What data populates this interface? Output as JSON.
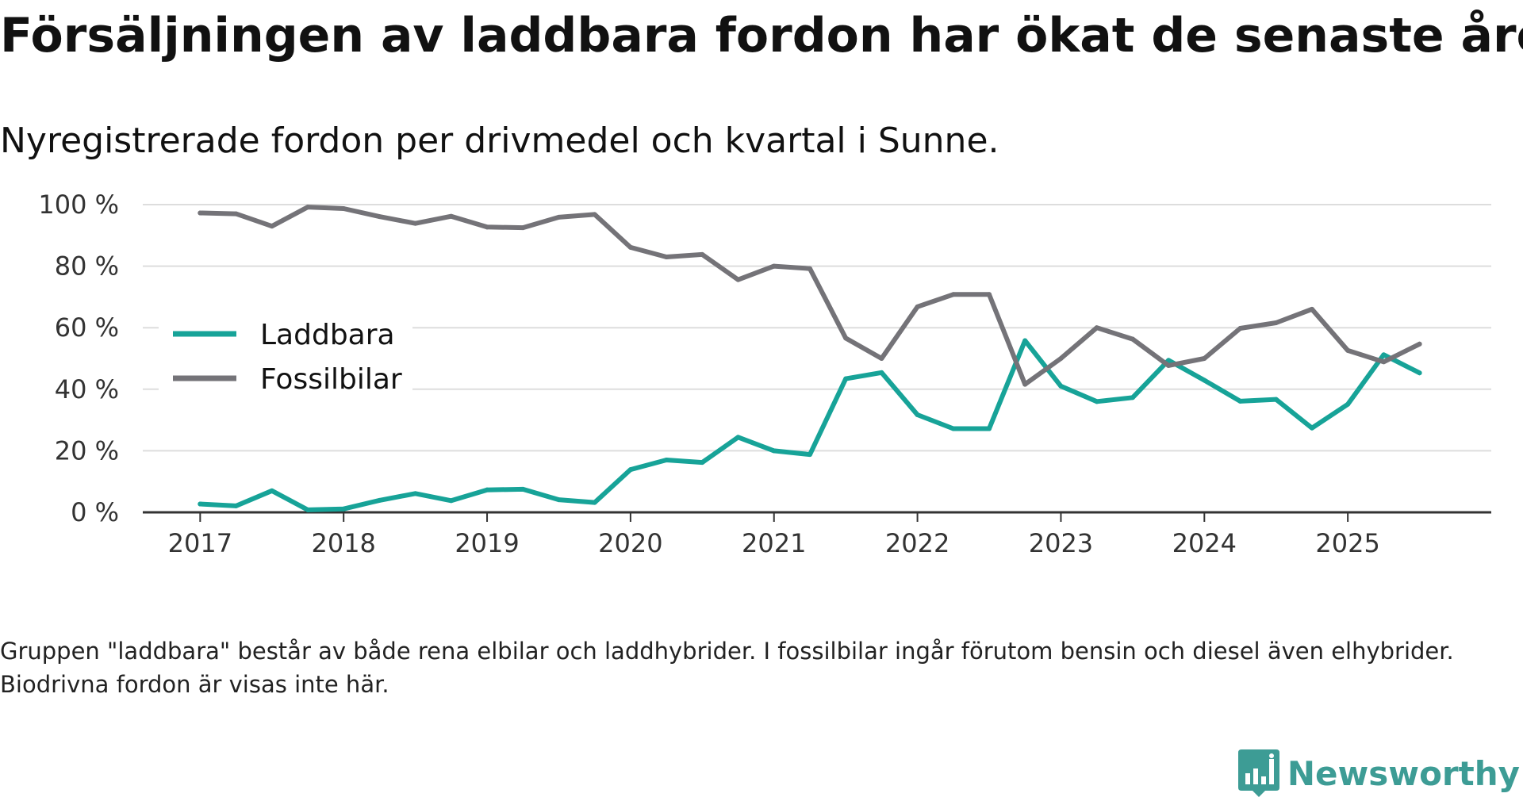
{
  "title": "Försäljningen av laddbara fordon har ökat de senaste åren",
  "subtitle": "Nyregistrerade fordon per drivmedel och kvartal i Sunne.",
  "footnote": "Gruppen \"laddbara\" består av både rena elbilar och laddhybrider. I fossilbilar ingår förutom bensin och diesel även elhybrider. Biodrivna fordon är visas inte här.",
  "brand": {
    "name": "Newsworthy",
    "color": "#3d9c95",
    "icon": "newsworthy-logo-icon"
  },
  "chart_data": {
    "type": "line",
    "title": "Försäljningen av laddbara fordon har ökat de senaste åren",
    "xlabel": "",
    "ylabel": "",
    "x_ticks": [
      "2017",
      "2018",
      "2019",
      "2020",
      "2021",
      "2022",
      "2023",
      "2024",
      "2025"
    ],
    "y_ticks": [
      "0 %",
      "20 %",
      "40 %",
      "60 %",
      "80 %",
      "100 %"
    ],
    "y_tick_values": [
      0,
      20,
      40,
      60,
      80,
      100
    ],
    "ylim": [
      0,
      100
    ],
    "xlim": [
      2016.6,
      2026.0
    ],
    "grid": true,
    "legend_position": "middle-left",
    "x": [
      2017.0,
      2017.25,
      2017.5,
      2017.75,
      2018.0,
      2018.25,
      2018.5,
      2018.75,
      2019.0,
      2019.25,
      2019.5,
      2019.75,
      2020.0,
      2020.25,
      2020.5,
      2020.75,
      2021.0,
      2021.25,
      2021.5,
      2021.75,
      2022.0,
      2022.25,
      2022.5,
      2022.75,
      2023.0,
      2023.25,
      2023.5,
      2023.75,
      2024.0,
      2024.25,
      2024.5,
      2024.75,
      2025.0,
      2025.25,
      2025.5
    ],
    "series": [
      {
        "name": "Laddbara",
        "color": "#17a398",
        "values": [
          2.7,
          2.1,
          7.0,
          0.8,
          1.1,
          3.9,
          6.1,
          3.8,
          7.3,
          7.5,
          4.1,
          3.2,
          13.9,
          17.0,
          16.2,
          24.4,
          20.0,
          18.8,
          43.4,
          45.4,
          31.7,
          27.2,
          27.2,
          55.8,
          41.0,
          36.0,
          37.3,
          49.4,
          42.9,
          36.1,
          36.7,
          27.4,
          35.1,
          51.2,
          45.3
        ]
      },
      {
        "name": "Fossilbilar",
        "color": "#747378",
        "values": [
          97.3,
          97.0,
          93.0,
          99.2,
          98.7,
          96.1,
          93.9,
          96.2,
          92.7,
          92.5,
          95.9,
          96.8,
          86.1,
          83.0,
          83.8,
          75.6,
          80.0,
          79.2,
          56.6,
          50.0,
          66.8,
          70.8,
          70.8,
          41.6,
          50.0,
          60.0,
          56.3,
          47.7,
          50.0,
          59.8,
          61.6,
          66.0,
          52.6,
          48.9,
          54.7
        ]
      }
    ]
  }
}
